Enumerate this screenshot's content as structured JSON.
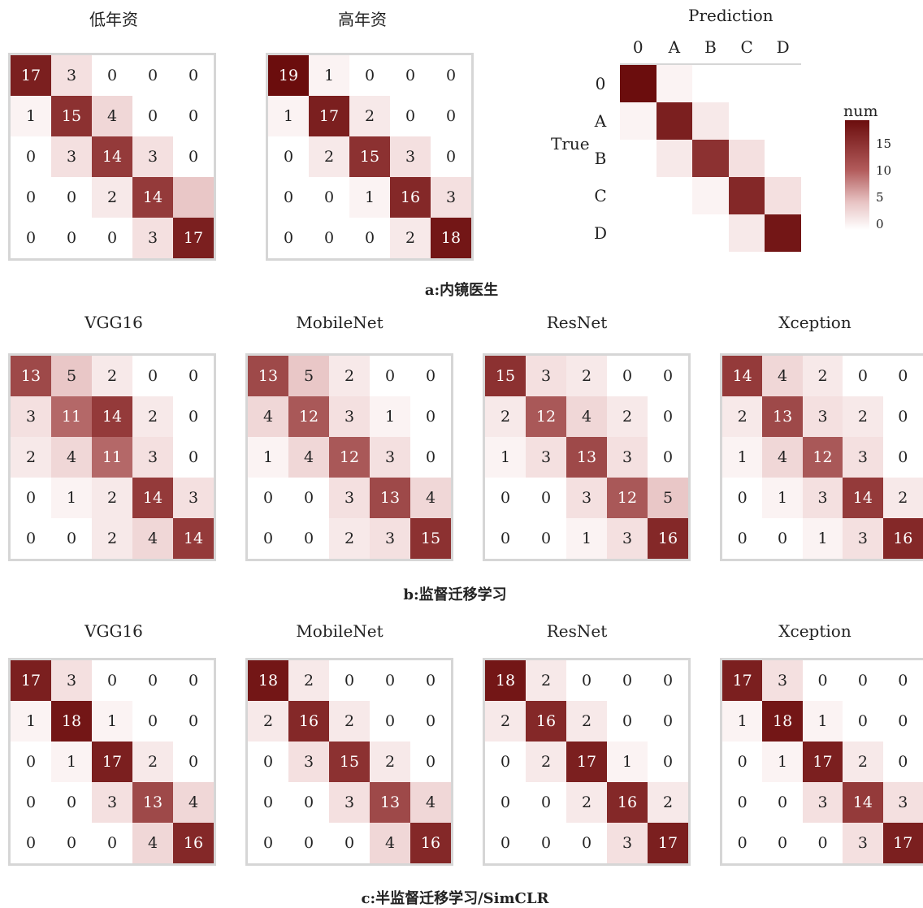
{
  "chart_data": [
    {
      "type": "heatmap",
      "title": "低年资",
      "values": [
        [
          17,
          3,
          0,
          0,
          0
        ],
        [
          1,
          15,
          4,
          0,
          0
        ],
        [
          0,
          3,
          14,
          3,
          0
        ],
        [
          0,
          0,
          2,
          14,
          null
        ],
        [
          0,
          0,
          0,
          3,
          17
        ]
      ]
    },
    {
      "type": "heatmap",
      "title": "高年资",
      "values": [
        [
          19,
          1,
          0,
          0,
          0
        ],
        [
          1,
          17,
          2,
          0,
          0
        ],
        [
          0,
          2,
          15,
          3,
          0
        ],
        [
          0,
          0,
          1,
          16,
          3
        ],
        [
          0,
          0,
          0,
          2,
          18
        ]
      ]
    },
    {
      "type": "heatmap",
      "title": "VGG16",
      "values": [
        [
          13,
          5,
          2,
          0,
          0
        ],
        [
          3,
          11,
          14,
          2,
          0
        ],
        [
          2,
          4,
          11,
          3,
          0
        ],
        [
          0,
          1,
          2,
          14,
          3
        ],
        [
          0,
          0,
          2,
          4,
          14
        ]
      ]
    },
    {
      "type": "heatmap",
      "title": "MobileNet",
      "values": [
        [
          13,
          5,
          2,
          0,
          0
        ],
        [
          4,
          12,
          3,
          1,
          0
        ],
        [
          1,
          4,
          12,
          3,
          0
        ],
        [
          0,
          0,
          3,
          13,
          4
        ],
        [
          0,
          0,
          2,
          3,
          15
        ]
      ]
    },
    {
      "type": "heatmap",
      "title": "ResNet",
      "values": [
        [
          15,
          3,
          2,
          0,
          0
        ],
        [
          2,
          12,
          4,
          2,
          0
        ],
        [
          1,
          3,
          13,
          3,
          0
        ],
        [
          0,
          0,
          3,
          12,
          5
        ],
        [
          0,
          0,
          1,
          3,
          16
        ]
      ]
    },
    {
      "type": "heatmap",
      "title": "Xception",
      "values": [
        [
          14,
          4,
          2,
          0,
          0
        ],
        [
          2,
          13,
          3,
          2,
          0
        ],
        [
          1,
          4,
          12,
          3,
          0
        ],
        [
          0,
          1,
          3,
          14,
          2
        ],
        [
          0,
          0,
          1,
          3,
          16
        ]
      ]
    },
    {
      "type": "heatmap",
      "title": "VGG16",
      "values": [
        [
          17,
          3,
          0,
          0,
          0
        ],
        [
          1,
          18,
          1,
          0,
          0
        ],
        [
          0,
          1,
          17,
          2,
          0
        ],
        [
          0,
          0,
          3,
          13,
          4
        ],
        [
          0,
          0,
          0,
          4,
          16
        ]
      ]
    },
    {
      "type": "heatmap",
      "title": "MobileNet",
      "values": [
        [
          18,
          2,
          0,
          0,
          0
        ],
        [
          2,
          16,
          2,
          0,
          0
        ],
        [
          0,
          3,
          15,
          2,
          0
        ],
        [
          0,
          0,
          3,
          13,
          4
        ],
        [
          0,
          0,
          0,
          4,
          16
        ]
      ]
    },
    {
      "type": "heatmap",
      "title": "ResNet",
      "values": [
        [
          18,
          2,
          0,
          0,
          0
        ],
        [
          2,
          16,
          2,
          0,
          0
        ],
        [
          0,
          2,
          17,
          1,
          0
        ],
        [
          0,
          0,
          2,
          16,
          2
        ],
        [
          0,
          0,
          0,
          3,
          17
        ]
      ]
    },
    {
      "type": "heatmap",
      "title": "Xception",
      "values": [
        [
          17,
          3,
          0,
          0,
          0
        ],
        [
          1,
          18,
          1,
          0,
          0
        ],
        [
          0,
          1,
          17,
          2,
          0
        ],
        [
          0,
          0,
          3,
          14,
          3
        ],
        [
          0,
          0,
          0,
          3,
          17
        ]
      ]
    }
  ],
  "reference": {
    "title": "Prediction",
    "ylabel": "True",
    "x_ticks": [
      "0",
      "A",
      "B",
      "C",
      "D"
    ],
    "y_ticks": [
      "0",
      "A",
      "B",
      "C",
      "D"
    ],
    "values": [
      [
        19,
        1,
        0,
        0,
        0
      ],
      [
        1,
        17,
        2,
        0,
        0
      ],
      [
        0,
        2,
        15,
        3,
        0
      ],
      [
        0,
        0,
        1,
        16,
        3
      ],
      [
        0,
        0,
        0,
        2,
        18
      ]
    ],
    "legend_title": "num",
    "legend_ticks": [
      "15",
      "10",
      "5",
      "0"
    ]
  },
  "captions": {
    "a": "a:内镜医生",
    "b": "b:监督迁移学习",
    "c": "c:半监督迁移学习/SimCLR"
  },
  "colors": {
    "max": "#6b0d0d",
    "min": "#ffffff"
  }
}
